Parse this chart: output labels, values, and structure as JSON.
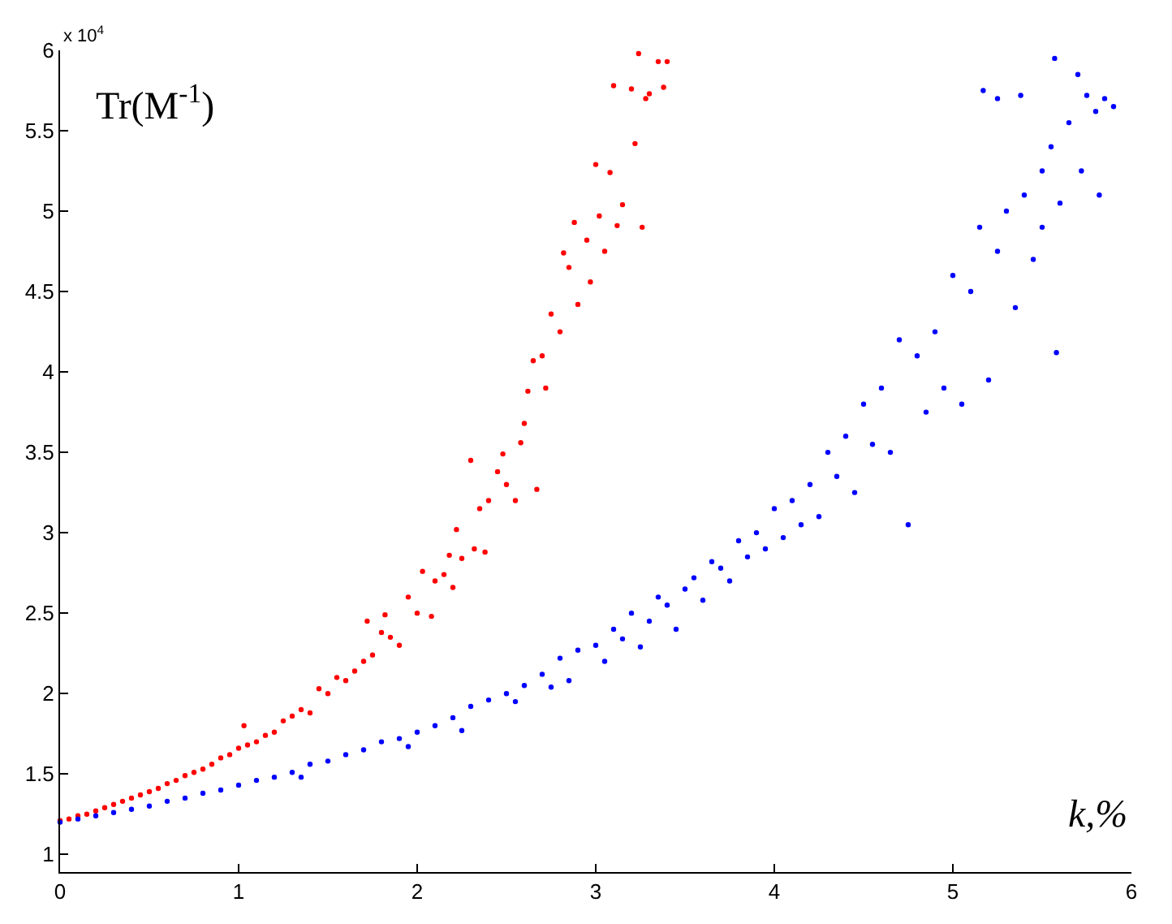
{
  "chart_data": {
    "type": "scatter",
    "xlabel": "k,%",
    "ylabel": "Tr(M$^{-1}$)",
    "annotations": [
      "x 10$^{4}$"
    ],
    "xlim": [
      0,
      6
    ],
    "xticks": [
      0,
      1,
      2,
      3,
      4,
      5,
      6
    ],
    "ylim": [
      0.89,
      6
    ],
    "yticks": [
      1,
      1.5,
      2,
      2.5,
      3,
      3.5,
      4,
      4.5,
      5,
      5.5,
      6
    ],
    "marker": "circle",
    "series": [
      {
        "color": "#ff0000",
        "x": [
          0,
          0.05,
          0.1,
          0.15,
          0.2,
          0.25,
          0.3,
          0.35,
          0.4,
          0.45,
          0.5,
          0.55,
          0.6,
          0.65,
          0.7,
          0.75,
          0.8,
          0.85,
          0.9,
          0.95,
          1.0,
          1.03,
          1.05,
          1.1,
          1.15,
          1.2,
          1.25,
          1.3,
          1.35,
          1.4,
          1.45,
          1.5,
          1.55,
          1.6,
          1.65,
          1.7,
          1.72,
          1.75,
          1.8,
          1.82,
          1.85,
          1.9,
          1.95,
          2.0,
          2.03,
          2.08,
          2.1,
          2.15,
          2.18,
          2.2,
          2.22,
          2.25,
          2.3,
          2.32,
          2.35,
          2.38,
          2.4,
          2.45,
          2.48,
          2.5,
          2.55,
          2.58,
          2.6,
          2.62,
          2.65,
          2.67,
          2.7,
          2.72,
          2.75,
          2.8,
          2.82,
          2.85,
          2.88,
          2.9,
          2.95,
          2.97,
          3.0,
          3.02,
          3.05,
          3.08,
          3.1,
          3.12,
          3.15,
          3.2,
          3.22,
          3.24,
          3.26,
          3.28,
          3.3,
          3.35,
          3.4,
          3.38
        ],
        "values": [
          1.21,
          1.22,
          1.24,
          1.25,
          1.27,
          1.29,
          1.31,
          1.33,
          1.35,
          1.37,
          1.39,
          1.41,
          1.44,
          1.46,
          1.49,
          1.51,
          1.53,
          1.56,
          1.6,
          1.62,
          1.66,
          1.8,
          1.68,
          1.7,
          1.74,
          1.76,
          1.83,
          1.86,
          1.9,
          1.88,
          2.03,
          2.0,
          2.1,
          2.08,
          2.14,
          2.2,
          2.45,
          2.24,
          2.38,
          2.49,
          2.35,
          2.3,
          2.6,
          2.5,
          2.76,
          2.48,
          2.7,
          2.74,
          2.86,
          2.66,
          3.02,
          2.84,
          3.45,
          2.9,
          3.15,
          2.88,
          3.2,
          3.38,
          3.49,
          3.3,
          3.2,
          3.56,
          3.68,
          3.88,
          4.07,
          3.27,
          4.1,
          3.9,
          4.36,
          4.25,
          4.74,
          4.65,
          4.93,
          4.42,
          4.82,
          4.56,
          5.29,
          4.97,
          4.75,
          5.24,
          5.78,
          4.91,
          5.04,
          5.76,
          5.42,
          5.98,
          4.9,
          5.7,
          5.73,
          5.93,
          5.93,
          5.77
        ]
      },
      {
        "color": "#0000ff",
        "x": [
          0,
          0.1,
          0.2,
          0.3,
          0.4,
          0.5,
          0.6,
          0.7,
          0.8,
          0.9,
          1.0,
          1.1,
          1.2,
          1.3,
          1.35,
          1.4,
          1.5,
          1.6,
          1.7,
          1.8,
          1.9,
          1.95,
          2.0,
          2.1,
          2.2,
          2.25,
          2.3,
          2.4,
          2.5,
          2.55,
          2.6,
          2.7,
          2.75,
          2.8,
          2.85,
          2.9,
          3.0,
          3.05,
          3.1,
          3.15,
          3.2,
          3.25,
          3.3,
          3.35,
          3.4,
          3.45,
          3.5,
          3.55,
          3.6,
          3.65,
          3.7,
          3.75,
          3.8,
          3.85,
          3.9,
          3.95,
          4.0,
          4.05,
          4.1,
          4.15,
          4.2,
          4.25,
          4.3,
          4.35,
          4.4,
          4.45,
          4.5,
          4.55,
          4.6,
          4.65,
          4.7,
          4.75,
          4.8,
          4.85,
          4.9,
          4.95,
          5.0,
          5.05,
          5.1,
          5.15,
          5.2,
          5.25,
          5.3,
          5.35,
          5.4,
          5.45,
          5.5,
          5.55,
          5.58,
          5.6,
          5.65,
          5.17,
          5.25,
          5.38,
          5.57,
          5.7,
          5.75,
          5.8,
          5.85,
          5.82,
          5.9,
          5.5,
          5.72
        ],
        "values": [
          1.2,
          1.22,
          1.24,
          1.26,
          1.28,
          1.3,
          1.33,
          1.35,
          1.38,
          1.4,
          1.43,
          1.46,
          1.48,
          1.51,
          1.48,
          1.56,
          1.58,
          1.62,
          1.65,
          1.7,
          1.72,
          1.67,
          1.76,
          1.8,
          1.85,
          1.77,
          1.92,
          1.96,
          2.0,
          1.95,
          2.05,
          2.12,
          2.04,
          2.22,
          2.08,
          2.27,
          2.3,
          2.2,
          2.4,
          2.34,
          2.5,
          2.29,
          2.45,
          2.6,
          2.55,
          2.4,
          2.65,
          2.72,
          2.58,
          2.82,
          2.78,
          2.7,
          2.95,
          2.85,
          3.0,
          2.9,
          3.15,
          2.97,
          3.2,
          3.05,
          3.3,
          3.1,
          3.5,
          3.35,
          3.6,
          3.25,
          3.8,
          3.55,
          3.9,
          3.5,
          4.2,
          3.05,
          4.1,
          3.75,
          4.25,
          3.9,
          4.6,
          3.8,
          4.5,
          4.9,
          3.95,
          4.75,
          5.0,
          4.4,
          5.1,
          4.7,
          5.25,
          5.4,
          4.12,
          5.05,
          5.55,
          5.75,
          5.7,
          5.72,
          5.95,
          5.85,
          5.72,
          5.62,
          5.7,
          5.1,
          5.65,
          4.9,
          5.25
        ]
      }
    ]
  }
}
